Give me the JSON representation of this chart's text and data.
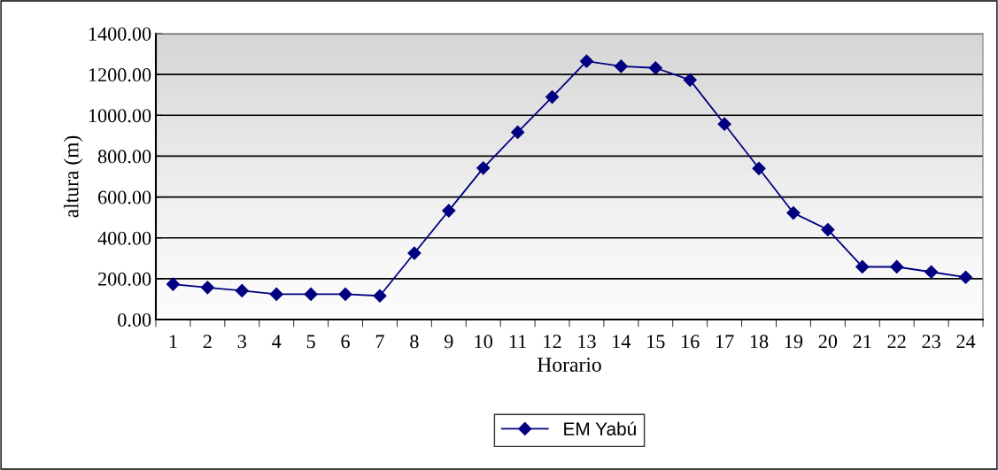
{
  "chart_data": {
    "type": "line",
    "xlabel": "Horario",
    "ylabel": "altura (m)",
    "categories": [
      "1",
      "2",
      "3",
      "4",
      "5",
      "6",
      "7",
      "8",
      "9",
      "10",
      "11",
      "12",
      "13",
      "14",
      "15",
      "16",
      "17",
      "18",
      "19",
      "20",
      "21",
      "22",
      "23",
      "24"
    ],
    "series": [
      {
        "name": "EM Yabú",
        "color": "#000080",
        "values": [
          173,
          157,
          141,
          124,
          124,
          124,
          116,
          325,
          533,
          742,
          917,
          1090,
          1265,
          1240,
          1232,
          1173,
          957,
          740,
          522,
          440,
          258,
          258,
          233,
          207
        ]
      }
    ],
    "ylim": [
      0,
      1400
    ],
    "yticks": [
      {
        "value": 0,
        "label": "0.00"
      },
      {
        "value": 200,
        "label": "200.00"
      },
      {
        "value": 400,
        "label": "400.00"
      },
      {
        "value": 600,
        "label": "600.00"
      },
      {
        "value": 800,
        "label": "800.00"
      },
      {
        "value": 1000,
        "label": "1000.00"
      },
      {
        "value": 1200,
        "label": "1200.00"
      },
      {
        "value": 1400,
        "label": "1400.00"
      }
    ],
    "grid": "y",
    "legend": "bottom",
    "marker": "diamond",
    "line_style": "solid"
  }
}
